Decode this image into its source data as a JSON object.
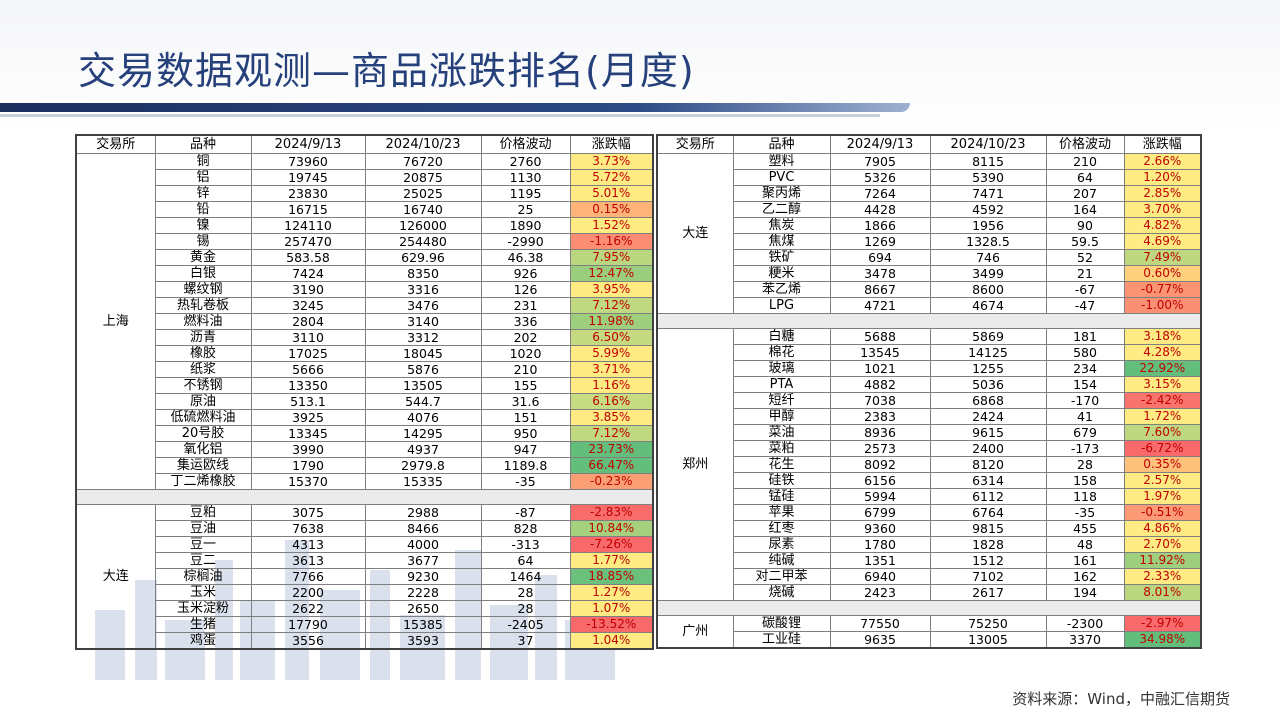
{
  "title": "交易数据观测—商品涨跌排名(月度)",
  "source": "资料来源：Wind，中融汇信期货",
  "headers": [
    "交易所",
    "品种",
    "2024/9/13",
    "2024/10/23",
    "价格波动",
    "涨跌幅"
  ],
  "left_groups": [
    {
      "exchange": "上海",
      "rows": [
        [
          "铜",
          "73960",
          "76720",
          "2760",
          "3.73%"
        ],
        [
          "铝",
          "19745",
          "20875",
          "1130",
          "5.72%"
        ],
        [
          "锌",
          "23830",
          "25025",
          "1195",
          "5.01%"
        ],
        [
          "铅",
          "16715",
          "16740",
          "25",
          "0.15%"
        ],
        [
          "镍",
          "124110",
          "126000",
          "1890",
          "1.52%"
        ],
        [
          "锡",
          "257470",
          "254480",
          "-2990",
          "-1.16%"
        ],
        [
          "黄金",
          "583.58",
          "629.96",
          "46.38",
          "7.95%"
        ],
        [
          "白银",
          "7424",
          "8350",
          "926",
          "12.47%"
        ],
        [
          "螺纹钢",
          "3190",
          "3316",
          "126",
          "3.95%"
        ],
        [
          "热轧卷板",
          "3245",
          "3476",
          "231",
          "7.12%"
        ],
        [
          "燃料油",
          "2804",
          "3140",
          "336",
          "11.98%"
        ],
        [
          "沥青",
          "3110",
          "3312",
          "202",
          "6.50%"
        ],
        [
          "橡胶",
          "17025",
          "18045",
          "1020",
          "5.99%"
        ],
        [
          "纸浆",
          "5666",
          "5876",
          "210",
          "3.71%"
        ],
        [
          "不锈钢",
          "13350",
          "13505",
          "155",
          "1.16%"
        ],
        [
          "原油",
          "513.1",
          "544.7",
          "31.6",
          "6.16%"
        ],
        [
          "低硫燃料油",
          "3925",
          "4076",
          "151",
          "3.85%"
        ],
        [
          "20号胶",
          "13345",
          "14295",
          "950",
          "7.12%"
        ],
        [
          "氧化铝",
          "3990",
          "4937",
          "947",
          "23.73%"
        ],
        [
          "集运欧线",
          "1790",
          "2979.8",
          "1189.8",
          "66.47%"
        ],
        [
          "丁二烯橡胶",
          "15370",
          "15335",
          "-35",
          "-0.23%"
        ]
      ]
    },
    {
      "exchange": "大连",
      "rows": [
        [
          "豆粕",
          "3075",
          "2988",
          "-87",
          "-2.83%"
        ],
        [
          "豆油",
          "7638",
          "8466",
          "828",
          "10.84%"
        ],
        [
          "豆一",
          "4313",
          "4000",
          "-313",
          "-7.26%"
        ],
        [
          "豆二",
          "3613",
          "3677",
          "64",
          "1.77%"
        ],
        [
          "棕榈油",
          "7766",
          "9230",
          "1464",
          "18.85%"
        ],
        [
          "玉米",
          "2200",
          "2228",
          "28",
          "1.27%"
        ],
        [
          "玉米淀粉",
          "2622",
          "2650",
          "28",
          "1.07%"
        ],
        [
          "生猪",
          "17790",
          "15385",
          "-2405",
          "-13.52%"
        ],
        [
          "鸡蛋",
          "3556",
          "3593",
          "37",
          "1.04%"
        ]
      ]
    }
  ],
  "right_groups": [
    {
      "exchange": "大连",
      "rows": [
        [
          "塑料",
          "7905",
          "8115",
          "210",
          "2.66%"
        ],
        [
          "PVC",
          "5326",
          "5390",
          "64",
          "1.20%"
        ],
        [
          "聚丙烯",
          "7264",
          "7471",
          "207",
          "2.85%"
        ],
        [
          "乙二醇",
          "4428",
          "4592",
          "164",
          "3.70%"
        ],
        [
          "焦炭",
          "1866",
          "1956",
          "90",
          "4.82%"
        ],
        [
          "焦煤",
          "1269",
          "1328.5",
          "59.5",
          "4.69%"
        ],
        [
          "铁矿",
          "694",
          "746",
          "52",
          "7.49%"
        ],
        [
          "粳米",
          "3478",
          "3499",
          "21",
          "0.60%"
        ],
        [
          "苯乙烯",
          "8667",
          "8600",
          "-67",
          "-0.77%"
        ],
        [
          "LPG",
          "4721",
          "4674",
          "-47",
          "-1.00%"
        ]
      ]
    },
    {
      "exchange": "郑州",
      "rows": [
        [
          "白糖",
          "5688",
          "5869",
          "181",
          "3.18%"
        ],
        [
          "棉花",
          "13545",
          "14125",
          "580",
          "4.28%"
        ],
        [
          "玻璃",
          "1021",
          "1255",
          "234",
          "22.92%"
        ],
        [
          "PTA",
          "4882",
          "5036",
          "154",
          "3.15%"
        ],
        [
          "短纤",
          "7038",
          "6868",
          "-170",
          "-2.42%"
        ],
        [
          "甲醇",
          "2383",
          "2424",
          "41",
          "1.72%"
        ],
        [
          "菜油",
          "8936",
          "9615",
          "679",
          "7.60%"
        ],
        [
          "菜粕",
          "2573",
          "2400",
          "-173",
          "-6.72%"
        ],
        [
          "花生",
          "8092",
          "8120",
          "28",
          "0.35%"
        ],
        [
          "硅铁",
          "6156",
          "6314",
          "158",
          "2.57%"
        ],
        [
          "锰硅",
          "5994",
          "6112",
          "118",
          "1.97%"
        ],
        [
          "苹果",
          "6799",
          "6764",
          "-35",
          "-0.51%"
        ],
        [
          "红枣",
          "9360",
          "9815",
          "455",
          "4.86%"
        ],
        [
          "尿素",
          "1780",
          "1828",
          "48",
          "2.70%"
        ],
        [
          "纯碱",
          "1351",
          "1512",
          "161",
          "11.92%"
        ],
        [
          "对二甲苯",
          "6940",
          "7102",
          "162",
          "2.33%"
        ],
        [
          "烧碱",
          "2423",
          "2617",
          "194",
          "8.01%"
        ]
      ]
    },
    {
      "exchange": "广州",
      "rows": [
        [
          "碳酸锂",
          "77550",
          "75250",
          "-2300",
          "-2.97%"
        ],
        [
          "工业硅",
          "9635",
          "13005",
          "3370",
          "34.98%"
        ]
      ]
    }
  ],
  "colors": {
    "title": "#25407a",
    "heat_low": "#f8696b",
    "heat_mid": "#ffeb84",
    "heat_high": "#63be7b",
    "change_text": "#c00000"
  }
}
